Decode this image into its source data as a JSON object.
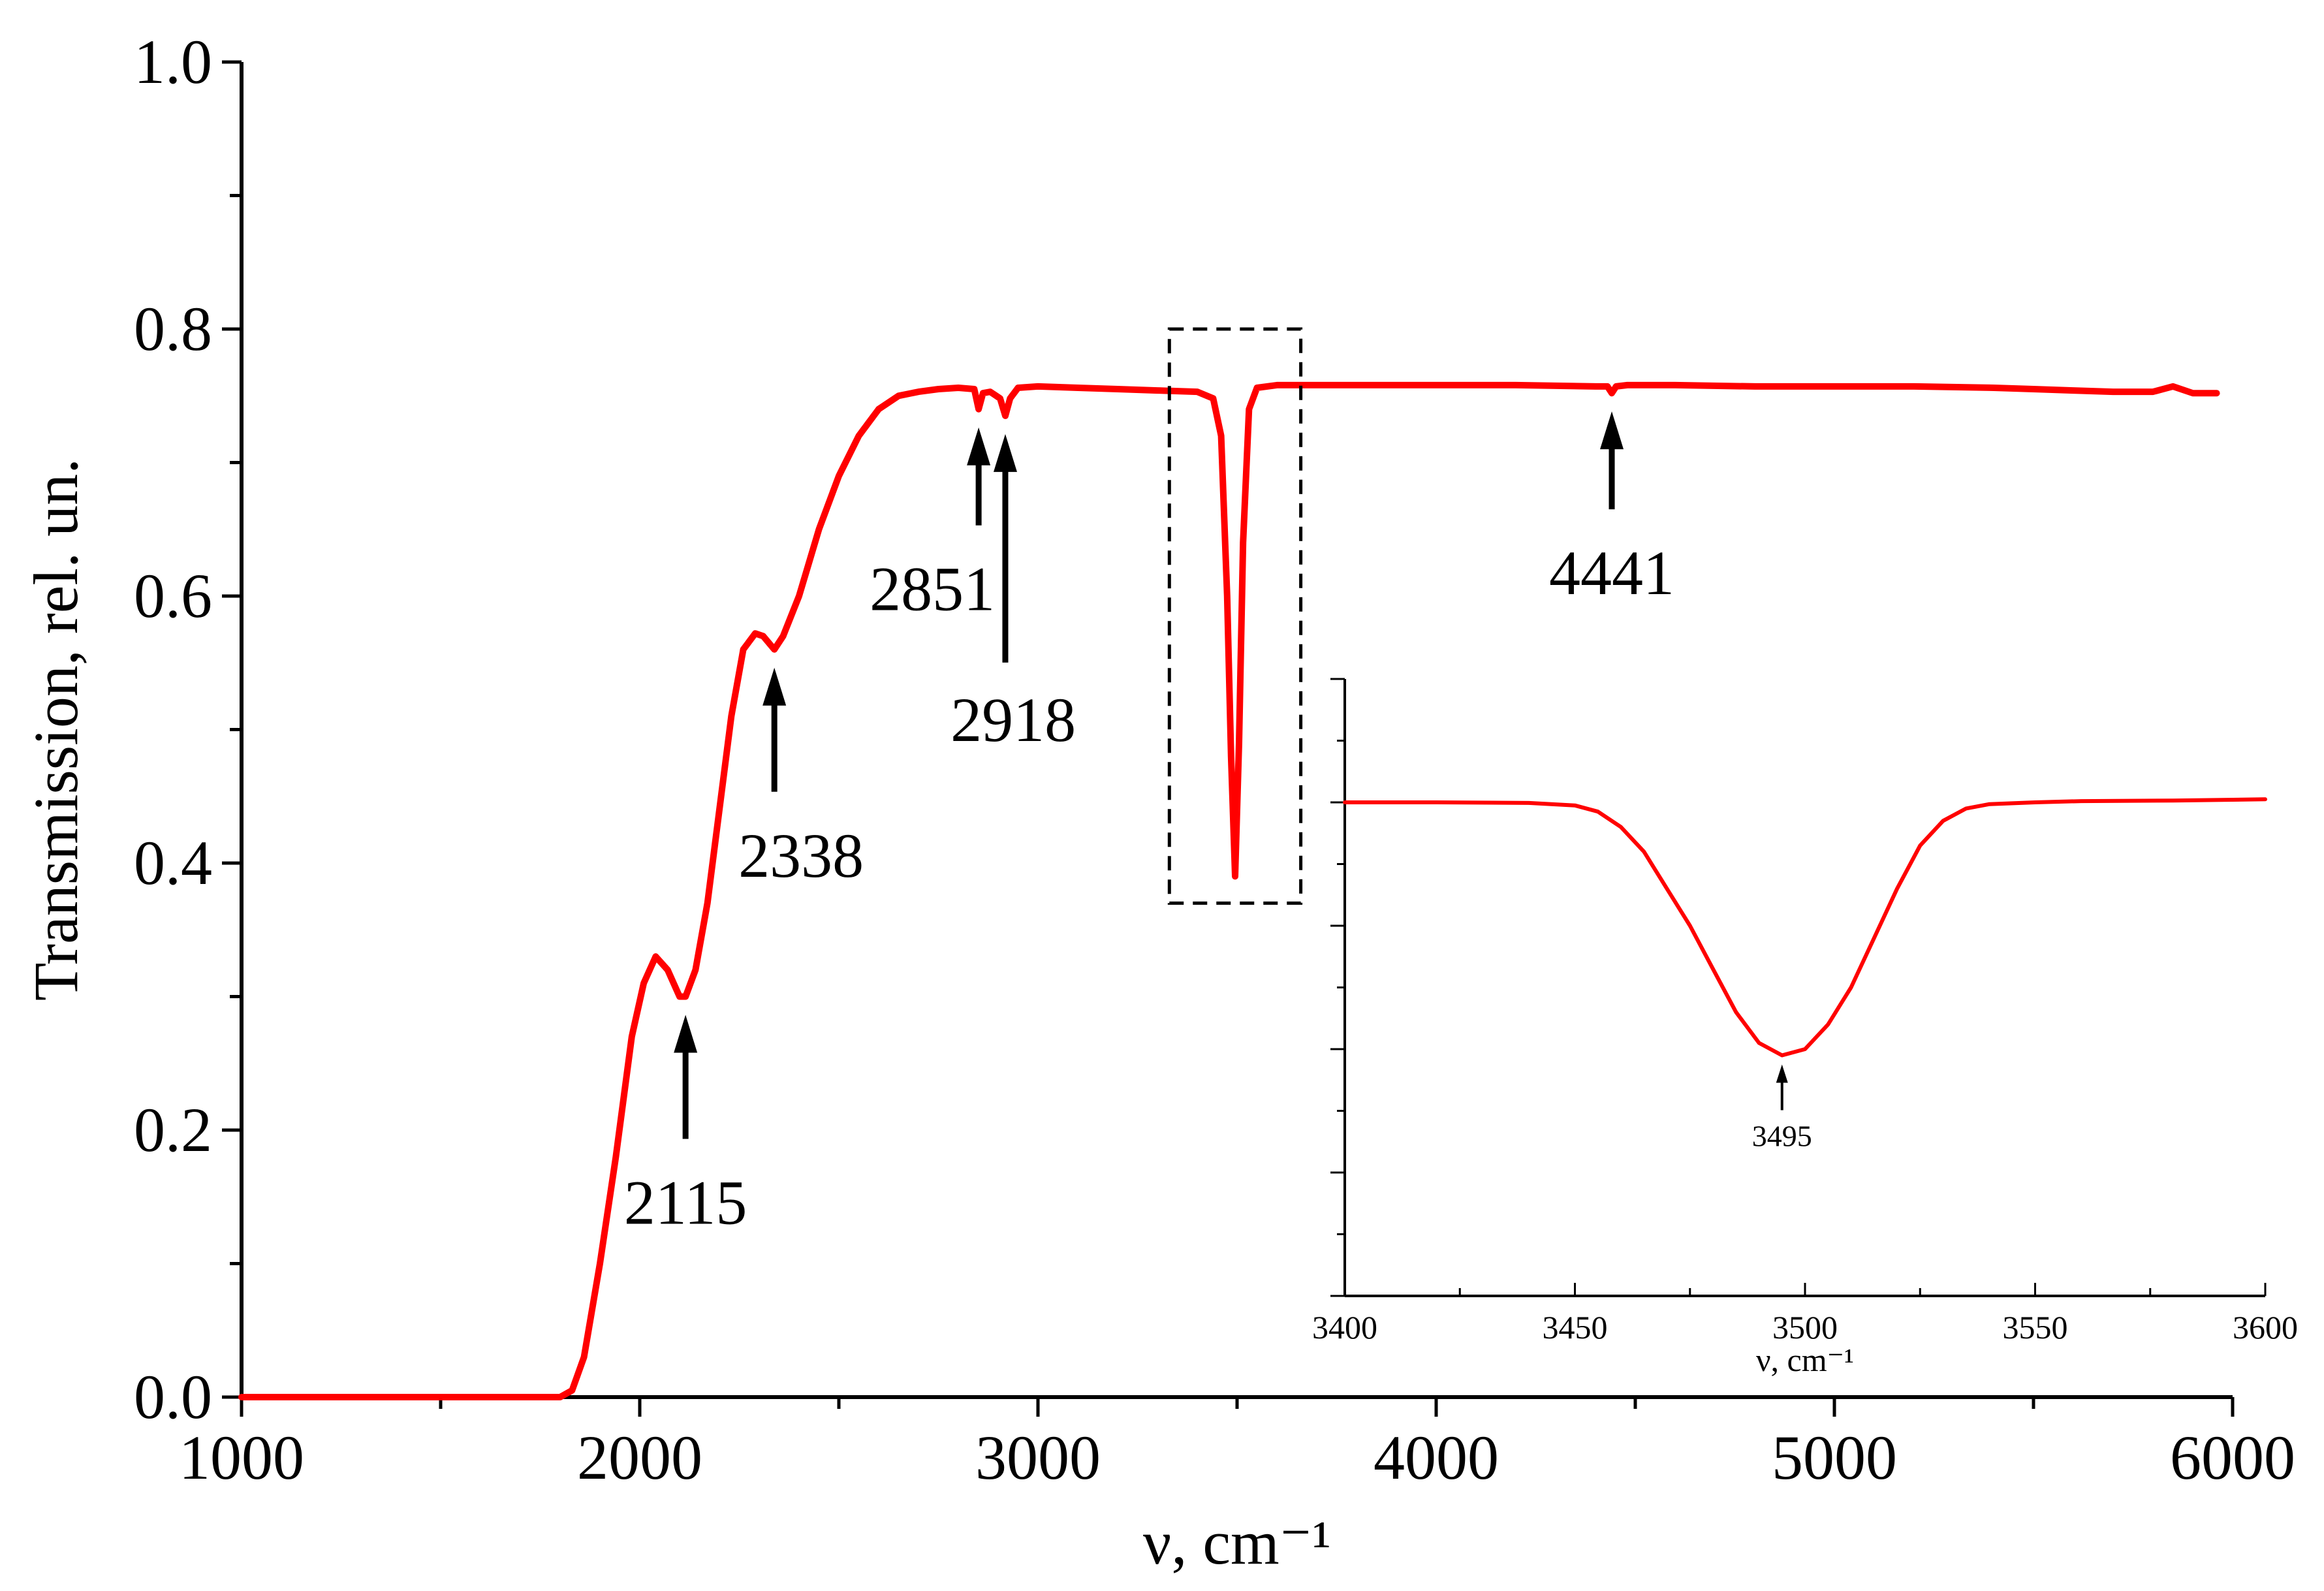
{
  "chart_data": [
    {
      "type": "line",
      "xlabel": "ν, cm⁻¹",
      "ylabel": "Transmission, rel. un.",
      "xlim": [
        1000,
        6000
      ],
      "ylim": [
        0.0,
        1.0
      ],
      "xticks": [
        "1000",
        "2000",
        "3000",
        "4000",
        "5000",
        "6000"
      ],
      "yticks": [
        "0.0",
        "0.2",
        "0.4",
        "0.6",
        "0.8",
        "1.0"
      ],
      "grid": false,
      "color": "#ff0000",
      "series": [
        {
          "x": [
            1000,
            1200,
            1400,
            1600,
            1800,
            1830,
            1860,
            1900,
            1940,
            1980,
            2010,
            2040,
            2070,
            2100,
            2115,
            2140,
            2170,
            2200,
            2230,
            2260,
            2290,
            2310,
            2338,
            2360,
            2400,
            2450,
            2500,
            2550,
            2600,
            2650,
            2700,
            2750,
            2800,
            2840,
            2851,
            2862,
            2880,
            2905,
            2918,
            2930,
            2950,
            3000,
            3100,
            3200,
            3300,
            3400,
            3440,
            3460,
            3475,
            3485,
            3495,
            3505,
            3515,
            3530,
            3550,
            3600,
            3800,
            4000,
            4200,
            4400,
            4430,
            4441,
            4452,
            4480,
            4600,
            4800,
            5000,
            5200,
            5400,
            5500,
            5600,
            5700,
            5800,
            5850,
            5900,
            5960
          ],
          "y": [
            0.0,
            0.0,
            0.0,
            0.0,
            0.0,
            0.005,
            0.03,
            0.1,
            0.18,
            0.27,
            0.31,
            0.33,
            0.32,
            0.3,
            0.3,
            0.32,
            0.37,
            0.44,
            0.51,
            0.56,
            0.572,
            0.57,
            0.56,
            0.57,
            0.6,
            0.65,
            0.69,
            0.72,
            0.74,
            0.75,
            0.753,
            0.755,
            0.756,
            0.755,
            0.74,
            0.752,
            0.753,
            0.748,
            0.735,
            0.748,
            0.756,
            0.757,
            0.756,
            0.755,
            0.754,
            0.753,
            0.748,
            0.72,
            0.6,
            0.48,
            0.39,
            0.49,
            0.64,
            0.74,
            0.756,
            0.758,
            0.758,
            0.758,
            0.758,
            0.757,
            0.757,
            0.752,
            0.757,
            0.758,
            0.758,
            0.757,
            0.757,
            0.757,
            0.756,
            0.755,
            0.754,
            0.753,
            0.753,
            0.757,
            0.752,
            0.752
          ]
        }
      ],
      "annotations": [
        {
          "label": "2115",
          "x": 2115,
          "y": 0.3
        },
        {
          "label": "2338",
          "x": 2338,
          "y": 0.56
        },
        {
          "label": "2851",
          "x": 2851,
          "y": 0.74
        },
        {
          "label": "2918",
          "x": 2918,
          "y": 0.735
        },
        {
          "label": "4441",
          "x": 4441,
          "y": 0.752
        }
      ],
      "highlight_box": {
        "x": [
          3330,
          3660
        ],
        "y": [
          0.37,
          0.8
        ]
      }
    },
    {
      "type": "line",
      "title": "",
      "xlabel": "ν, cm⁻¹",
      "ylabel": "",
      "xlim": [
        3400,
        3600
      ],
      "ylim": [
        0.0,
        1.0
      ],
      "xticks": [
        "3400",
        "3450",
        "3500",
        "3550",
        "3600"
      ],
      "y_tick_labels_shown": false,
      "grid": false,
      "color": "#ff0000",
      "series": [
        {
          "x": [
            3400,
            3420,
            3440,
            3450,
            3455,
            3460,
            3465,
            3470,
            3475,
            3480,
            3485,
            3490,
            3495,
            3500,
            3505,
            3510,
            3515,
            3520,
            3525,
            3530,
            3535,
            3540,
            3550,
            3560,
            3580,
            3600
          ],
          "y": [
            0.8,
            0.8,
            0.799,
            0.795,
            0.785,
            0.76,
            0.72,
            0.66,
            0.6,
            0.53,
            0.46,
            0.41,
            0.39,
            0.4,
            0.44,
            0.5,
            0.58,
            0.66,
            0.73,
            0.77,
            0.79,
            0.797,
            0.8,
            0.802,
            0.803,
            0.805
          ]
        }
      ],
      "annotations": [
        {
          "label": "3495",
          "x": 3495,
          "y": 0.39
        }
      ]
    }
  ]
}
